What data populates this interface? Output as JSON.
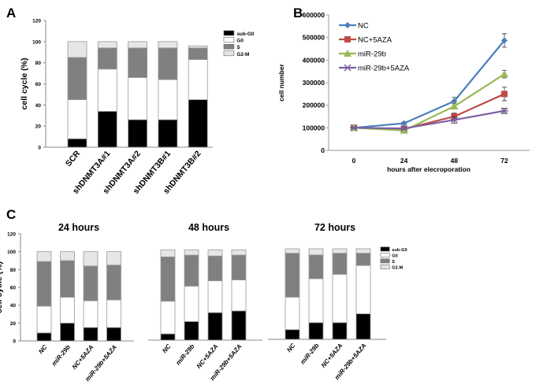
{
  "panel_labels": [
    "A",
    "B",
    "C"
  ],
  "phase_colors": {
    "sub-G0": "#000000",
    "G0": "#ffffff",
    "S": "#808080",
    "G2-M": "#e6e6e6"
  },
  "chart_data": [
    {
      "id": "A",
      "type": "bar",
      "stacked": true,
      "ylabel": "cell cycle (%)",
      "ylim": [
        0,
        120
      ],
      "yticks": [
        0,
        20,
        40,
        60,
        80,
        100,
        120
      ],
      "categories": [
        "SCR",
        "shDNMT3A#1",
        "shDNMT3A#2",
        "shDNMT3B#1",
        "shDNMT3B#2"
      ],
      "legend": "top-right",
      "series": [
        {
          "name": "sub-G0",
          "values": [
            8,
            34,
            26,
            26,
            45
          ]
        },
        {
          "name": "G0",
          "values": [
            37,
            40,
            40,
            38,
            38
          ]
        },
        {
          "name": "S",
          "values": [
            40,
            20,
            28,
            30,
            11
          ]
        },
        {
          "name": "G2-M",
          "values": [
            15,
            6,
            6,
            6,
            2
          ]
        }
      ]
    },
    {
      "id": "B",
      "type": "line",
      "xlabel": "hours after elecroporation",
      "ylabel": "cell number",
      "x": [
        0,
        24,
        48,
        72
      ],
      "ylim": [
        0,
        600000
      ],
      "yticks": [
        0,
        100000,
        200000,
        300000,
        400000,
        500000,
        600000
      ],
      "legend": "top-left",
      "series": [
        {
          "name": "NC",
          "color": "#4a7ebb",
          "marker": "diamond",
          "values": [
            100000,
            120000,
            218000,
            487000
          ],
          "errors": [
            3000,
            6000,
            17000,
            30000
          ]
        },
        {
          "name": "NC+5AZA",
          "color": "#be4b48",
          "marker": "square",
          "values": [
            100000,
            95000,
            150000,
            250000
          ],
          "errors": [
            3000,
            5000,
            15000,
            30000
          ]
        },
        {
          "name": "miR-29b",
          "color": "#98b954",
          "marker": "triangle",
          "values": [
            100000,
            88000,
            195000,
            338000
          ],
          "errors": [
            3000,
            4000,
            12000,
            17000
          ]
        },
        {
          "name": "miR-29b+5AZA",
          "color": "#7d60a0",
          "marker": "x",
          "values": [
            100000,
            97000,
            135000,
            175000
          ],
          "errors": [
            3000,
            5000,
            15000,
            12000
          ]
        }
      ]
    },
    {
      "id": "C1",
      "type": "bar",
      "stacked": true,
      "title": "24 hours",
      "ylabel": "cell cycle (%)",
      "ylim": [
        0,
        120
      ],
      "yticks": [
        0,
        20,
        40,
        60,
        80,
        100,
        120
      ],
      "categories": [
        "NC",
        "miR-29b",
        "NC+5AZA",
        "miR-29b+5AZA"
      ],
      "series": [
        {
          "name": "sub-G0",
          "values": [
            9,
            20,
            15,
            15
          ]
        },
        {
          "name": "G0",
          "values": [
            30,
            29,
            30,
            31
          ]
        },
        {
          "name": "S",
          "values": [
            50,
            41,
            39,
            39
          ]
        },
        {
          "name": "G2-M",
          "values": [
            11,
            10,
            16,
            15
          ]
        }
      ]
    },
    {
      "id": "C2",
      "type": "bar",
      "stacked": true,
      "title": "48 hours",
      "ylim": [
        0,
        120
      ],
      "categories": [
        "NC",
        "miR-29b",
        "NC+5AZA",
        "miR-29b+5AZA"
      ],
      "series": [
        {
          "name": "sub-G0",
          "values": [
            7,
            21,
            31,
            33
          ]
        },
        {
          "name": "G0",
          "values": [
            37,
            40,
            36,
            35
          ]
        },
        {
          "name": "S",
          "values": [
            50,
            35,
            28,
            28
          ]
        },
        {
          "name": "G2-M",
          "values": [
            8,
            6,
            7,
            6
          ]
        }
      ]
    },
    {
      "id": "C3",
      "type": "bar",
      "stacked": true,
      "title": "72 hours",
      "ylim": [
        0,
        120
      ],
      "categories": [
        "NC",
        "miR-29b",
        "NC+5AZA",
        "miR-29b+5AZA"
      ],
      "legend": "right",
      "series": [
        {
          "name": "sub-G0",
          "values": [
            11,
            19,
            19,
            29
          ]
        },
        {
          "name": "G0",
          "values": [
            37,
            50,
            55,
            55
          ]
        },
        {
          "name": "S",
          "values": [
            50,
            27,
            24,
            14
          ]
        },
        {
          "name": "G2-M",
          "values": [
            5,
            7,
            5,
            5
          ]
        }
      ]
    }
  ]
}
